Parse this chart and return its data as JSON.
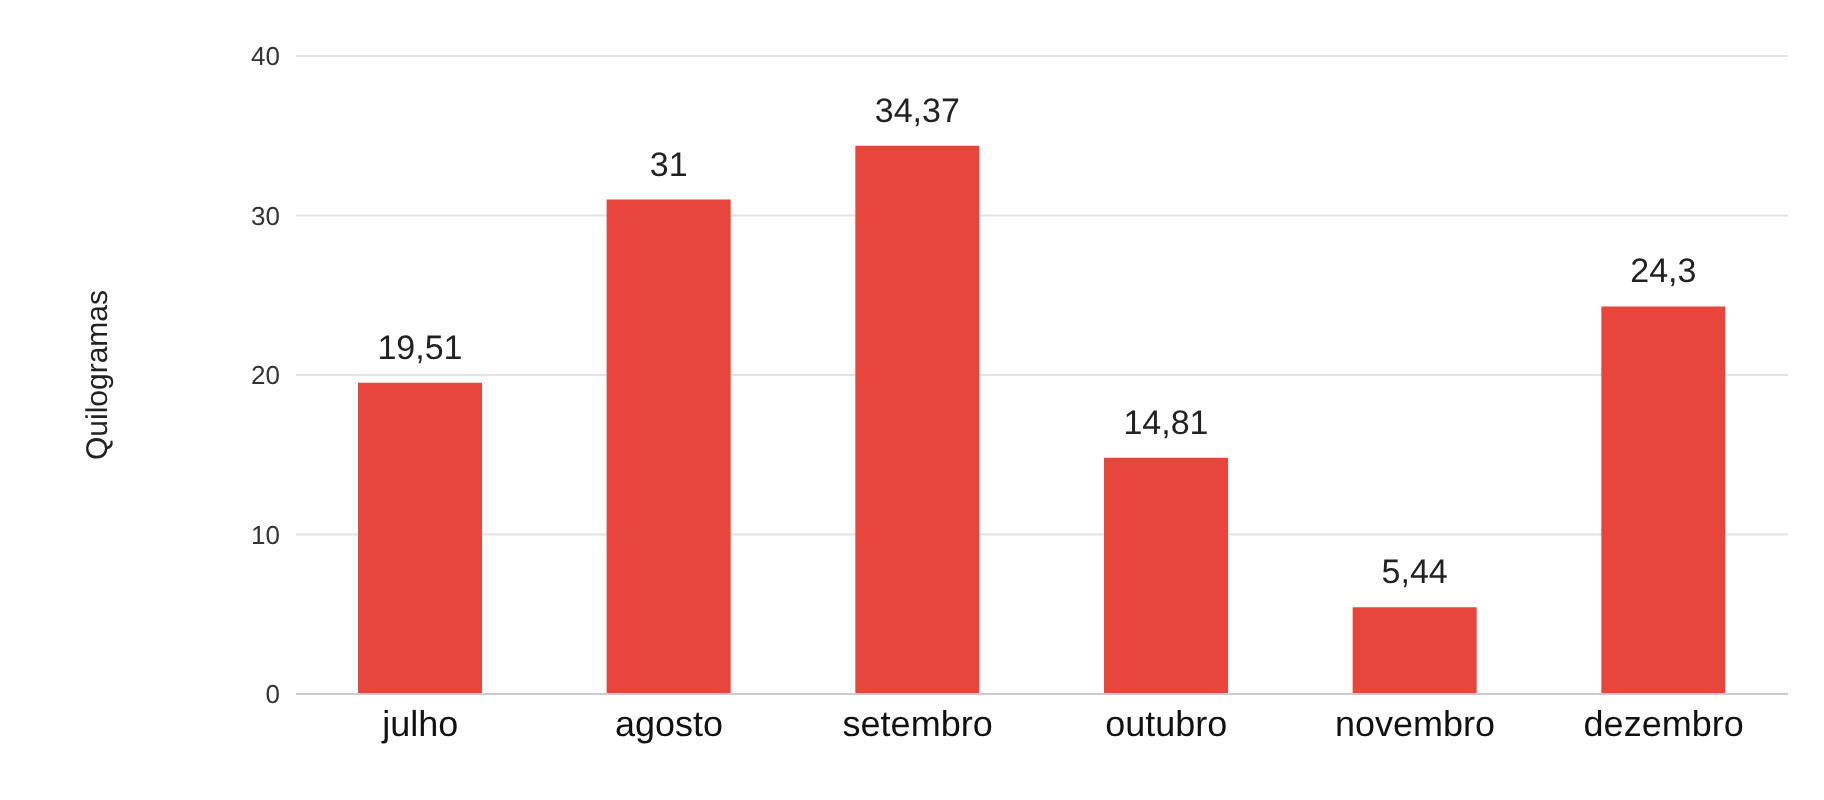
{
  "chart_data": {
    "type": "bar",
    "ylabel": "Quilogramas",
    "categories": [
      "julho",
      "agosto",
      "setembro",
      "outubro",
      "novembro",
      "dezembro"
    ],
    "values": [
      19.51,
      31,
      34.37,
      14.81,
      5.44,
      24.3
    ],
    "value_labels": [
      "19,51",
      "31",
      "34,37",
      "14,81",
      "5,44",
      "24,3"
    ],
    "color": "#e8453c",
    "ylim": [
      0,
      40
    ],
    "yticks": [
      0,
      10,
      20,
      30,
      40
    ],
    "grid": "y"
  }
}
